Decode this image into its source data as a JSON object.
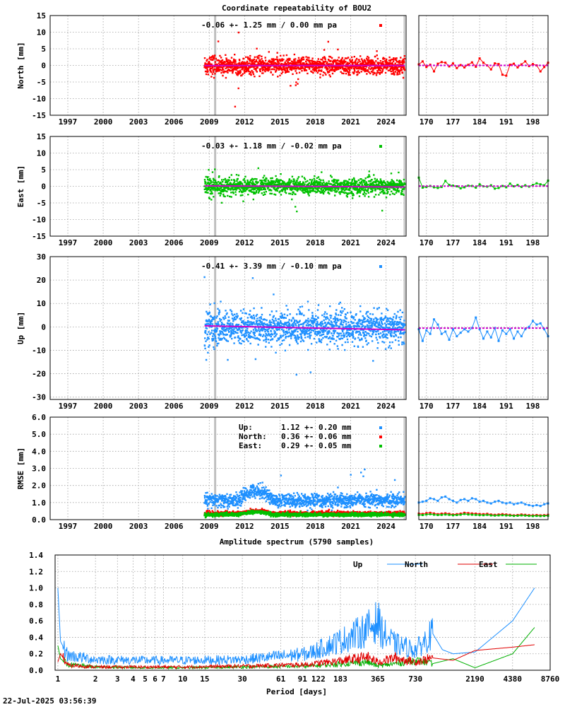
{
  "title": "Coordinate repeatability of BOU2",
  "timestamp": "22-Jul-2025 03:56:39",
  "colors": {
    "north": "#ff0000",
    "east": "#00c000",
    "up": "#1e90ff",
    "trend": "#cc00cc",
    "gap": "#c0c0c0"
  },
  "chart_data": [
    {
      "id": "north",
      "type": "scatter",
      "ylabel": "North [mm]",
      "ylim": [
        -15,
        15
      ],
      "yticks": [
        15,
        10,
        5,
        0,
        -5,
        -10,
        -15
      ],
      "xlim": [
        1995.5,
        2025.7
      ],
      "xticks": [
        1997,
        2000,
        2003,
        2006,
        2009,
        2012,
        2015,
        2018,
        2021,
        2024
      ],
      "data_range": [
        2008.6,
        2025.6
      ],
      "gap_year": 2009.5,
      "annotation": "-0.06 +- 1.25 mm /  0.00 mm pa",
      "stats": {
        "mean_mm": -0.06,
        "std_mm": 1.25,
        "trend_mm_pa": 0.0
      },
      "recent": {
        "xlim": [
          168,
          202
        ],
        "xticks": [
          170,
          177,
          184,
          191,
          198
        ],
        "values": [
          0.3,
          1.2,
          -0.5,
          0.2,
          -1.8,
          0.5,
          1.0,
          0.8,
          -0.3,
          0.6,
          -0.8,
          0.1,
          -0.6,
          0.2,
          0.9,
          -0.4,
          2.1,
          0.8,
          0.0,
          -1.2,
          0.6,
          0.4,
          -2.8,
          -3.1,
          0.2,
          0.5,
          -0.6,
          0.3,
          1.2,
          -0.2,
          0.4,
          0.0,
          -1.8,
          -0.5,
          0.8
        ]
      }
    },
    {
      "id": "east",
      "type": "scatter",
      "ylabel": "East [mm]",
      "ylim": [
        -15,
        15
      ],
      "yticks": [
        15,
        10,
        5,
        0,
        -5,
        -10,
        -15
      ],
      "xlim": [
        1995.5,
        2025.7
      ],
      "xticks": [
        1997,
        2000,
        2003,
        2006,
        2009,
        2012,
        2015,
        2018,
        2021,
        2024
      ],
      "data_range": [
        2008.6,
        2025.6
      ],
      "gap_year": 2009.5,
      "annotation": "-0.03 +- 1.18 mm / -0.02 mm pa",
      "stats": {
        "mean_mm": -0.03,
        "std_mm": 1.18,
        "trend_mm_pa": -0.02
      },
      "recent": {
        "xlim": [
          168,
          202
        ],
        "xticks": [
          170,
          177,
          184,
          191,
          198
        ],
        "values": [
          2.6,
          -0.4,
          -0.2,
          0.1,
          -0.3,
          -0.5,
          -0.2,
          1.6,
          0.4,
          0.2,
          0.0,
          -0.6,
          -0.3,
          0.2,
          0.1,
          -0.4,
          0.6,
          0.0,
          -0.1,
          0.3,
          -0.7,
          -0.5,
          0.1,
          -0.3,
          0.8,
          0.0,
          0.4,
          -0.2,
          0.3,
          -0.1,
          0.4,
          0.9,
          0.6,
          0.3,
          1.7
        ]
      }
    },
    {
      "id": "up",
      "type": "scatter",
      "ylabel": "Up [mm]",
      "ylim": [
        -31,
        30
      ],
      "yticks": [
        30,
        20,
        10,
        0,
        -10,
        -20,
        -30
      ],
      "xlim": [
        1995.5,
        2025.7
      ],
      "xticks": [
        1997,
        2000,
        2003,
        2006,
        2009,
        2012,
        2015,
        2018,
        2021,
        2024
      ],
      "data_range": [
        2008.6,
        2025.6
      ],
      "gap_year": 2009.5,
      "annotation": "-0.41 +- 3.39 mm / -0.10 mm pa",
      "stats": {
        "mean_mm": -0.41,
        "std_mm": 3.39,
        "trend_mm_pa": -0.1
      },
      "recent": {
        "xlim": [
          168,
          202
        ],
        "xticks": [
          170,
          177,
          184,
          191,
          198
        ],
        "values": [
          -1.0,
          -6.0,
          -1.5,
          -3.0,
          3.2,
          1.0,
          -3.0,
          -2.0,
          -5.5,
          -1.0,
          -4.0,
          -2.5,
          -1.0,
          -2.0,
          -0.5,
          4.0,
          -1.0,
          -5.0,
          -2.0,
          -4.5,
          -0.5,
          -6.0,
          -1.5,
          -3.0,
          -1.0,
          -5.0,
          -2.0,
          -4.0,
          -1.0,
          0.0,
          2.5,
          1.0,
          1.5,
          -1.0,
          -4.0
        ]
      }
    },
    {
      "id": "rmse",
      "type": "scatter",
      "ylabel": "RMSE [mm]",
      "ylim": [
        0.0,
        6.0
      ],
      "yticks": [
        6.0,
        5.0,
        4.0,
        3.0,
        2.0,
        1.0,
        0.0
      ],
      "xlim": [
        1995.5,
        2025.7
      ],
      "xticks": [
        1997,
        2000,
        2003,
        2006,
        2009,
        2012,
        2015,
        2018,
        2021,
        2024
      ],
      "data_range": [
        2008.6,
        2025.6
      ],
      "gap_year": 2009.5,
      "legend": [
        {
          "name": "Up:",
          "stat": "1.12 +- 0.20 mm",
          "color": "#1e90ff"
        },
        {
          "name": "North:",
          "stat": "0.36 +- 0.06 mm",
          "color": "#ff0000"
        },
        {
          "name": "East:",
          "stat": "0.29 +- 0.05 mm",
          "color": "#00c000"
        }
      ],
      "series_means": {
        "up": 1.12,
        "north": 0.36,
        "east": 0.29
      },
      "recent": {
        "xlim": [
          168,
          202
        ],
        "xticks": [
          170,
          177,
          184,
          191,
          198
        ],
        "up": [
          1.0,
          1.05,
          1.1,
          1.25,
          1.2,
          1.1,
          1.3,
          1.35,
          1.2,
          1.1,
          1.0,
          1.15,
          1.2,
          1.1,
          1.25,
          1.2,
          1.05,
          1.1,
          1.0,
          0.95,
          1.05,
          1.1,
          1.0,
          0.95,
          1.0,
          0.9,
          0.95,
          1.0,
          0.9,
          0.85,
          0.8,
          0.85,
          0.8,
          0.9,
          0.95
        ],
        "north": [
          0.35,
          0.33,
          0.38,
          0.4,
          0.36,
          0.32,
          0.35,
          0.37,
          0.34,
          0.3,
          0.32,
          0.35,
          0.4,
          0.38,
          0.36,
          0.35,
          0.33,
          0.32,
          0.34,
          0.3,
          0.28,
          0.3,
          0.32,
          0.3,
          0.28,
          0.25,
          0.27,
          0.3,
          0.28,
          0.26,
          0.25,
          0.27,
          0.25,
          0.26,
          0.28
        ],
        "east": [
          0.28,
          0.27,
          0.3,
          0.32,
          0.29,
          0.27,
          0.28,
          0.3,
          0.28,
          0.26,
          0.27,
          0.29,
          0.33,
          0.3,
          0.29,
          0.28,
          0.27,
          0.26,
          0.28,
          0.25,
          0.24,
          0.25,
          0.26,
          0.25,
          0.24,
          0.22,
          0.23,
          0.25,
          0.24,
          0.22,
          0.21,
          0.22,
          0.21,
          0.22,
          0.23
        ]
      }
    },
    {
      "id": "spectrum",
      "type": "line",
      "title": "Amplitude spectrum (5790 samples)",
      "xlabel": "Period [days]",
      "xscale": "log",
      "xlim": [
        0.95,
        8760
      ],
      "ylim": [
        0.0,
        1.4
      ],
      "yticks": [
        1.4,
        1.2,
        1.0,
        0.8,
        0.6,
        0.4,
        0.2,
        0.0
      ],
      "xticks": [
        1,
        2,
        3,
        4,
        5,
        6,
        7,
        10,
        15,
        30,
        61,
        91,
        122,
        183,
        365,
        730,
        2190,
        4380,
        8760
      ],
      "legend": [
        "Up",
        "North",
        "East"
      ],
      "legend_position": "top-right",
      "series": [
        {
          "name": "Up",
          "color": "#1e90ff",
          "x": [
            1,
            1.05,
            1.2,
            2,
            5,
            10,
            30,
            100,
            200,
            300,
            365,
            400,
            500,
            730,
            800,
            1000,
            1200,
            1460,
            2190,
            4380,
            6570
          ],
          "y": [
            1.0,
            0.35,
            0.18,
            0.13,
            0.12,
            0.12,
            0.13,
            0.2,
            0.38,
            0.5,
            0.6,
            0.45,
            0.32,
            0.25,
            0.3,
            0.45,
            0.25,
            0.2,
            0.22,
            0.6,
            1.0
          ]
        },
        {
          "name": "North",
          "color": "#e00000",
          "x": [
            1,
            1.05,
            1.2,
            2,
            5,
            10,
            30,
            100,
            200,
            300,
            365,
            500,
            730,
            1000,
            1460,
            2190,
            4380,
            6570
          ],
          "y": [
            0.1,
            0.2,
            0.06,
            0.04,
            0.04,
            0.04,
            0.05,
            0.07,
            0.12,
            0.16,
            0.1,
            0.15,
            0.1,
            0.15,
            0.12,
            0.24,
            0.28,
            0.31
          ]
        },
        {
          "name": "East",
          "color": "#00b000",
          "x": [
            1,
            1.05,
            1.2,
            2,
            5,
            10,
            30,
            100,
            200,
            300,
            365,
            500,
            730,
            1000,
            1460,
            2190,
            4380,
            6570
          ],
          "y": [
            0.3,
            0.14,
            0.07,
            0.04,
            0.03,
            0.03,
            0.04,
            0.05,
            0.08,
            0.1,
            0.05,
            0.08,
            0.12,
            0.08,
            0.14,
            0.03,
            0.2,
            0.52
          ]
        }
      ]
    }
  ]
}
